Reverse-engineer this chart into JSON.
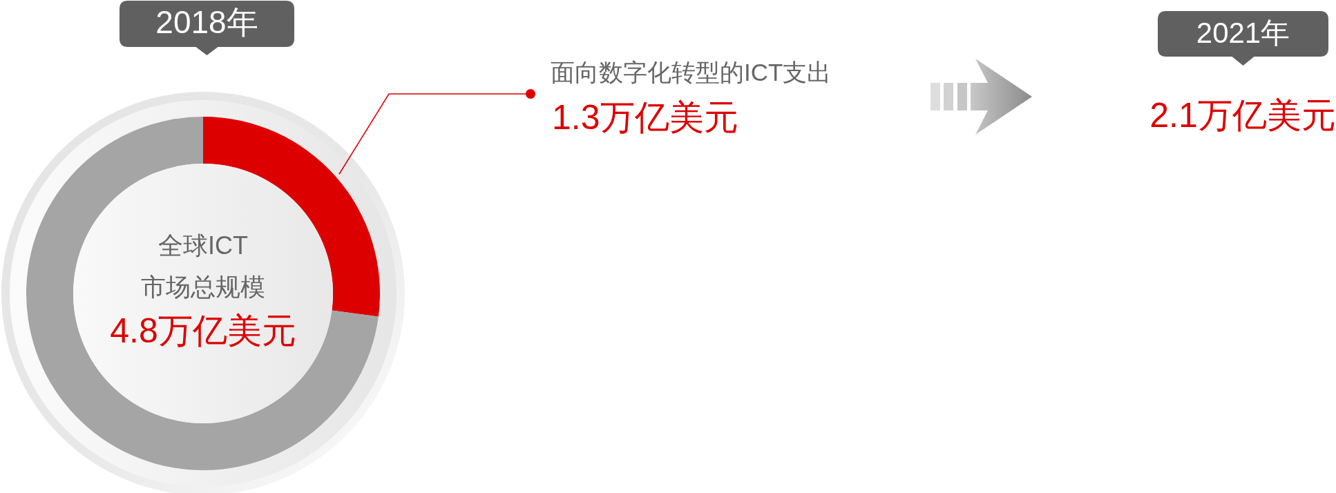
{
  "chart_data": {
    "type": "donut",
    "categories": [
      "面向数字化转型的ICT支出",
      null
    ],
    "values": [
      1.3,
      3.5
    ],
    "colors": [
      "#dd0000",
      "#a5a5a5"
    ],
    "value_labels": [
      "1.3万亿美元",
      null
    ],
    "annotations": [
      "2018年",
      "全球ICT",
      "市场总规模",
      "4.8万亿美元",
      "2021年",
      "2.1万亿美元"
    ]
  }
}
